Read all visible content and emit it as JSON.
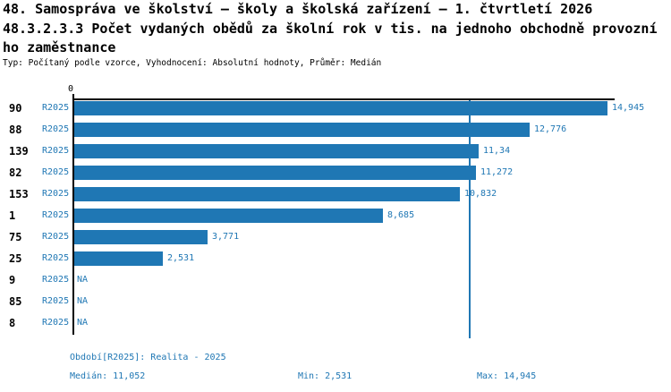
{
  "header": {
    "title_line1": "48. Samospráva ve školství – školy a školská zařízení – 1. čtvrtletí 2026",
    "title_line2": "48.3.2.3.3 Počet vydaných obědů za školní rok v tis. na jednoho obchodně provozní",
    "title_line3": "ho zaměstnance",
    "meta": "Typ: Počítaný podle vzorce, Vyhodnocení: Absolutní hodnoty, Průměr: Medián"
  },
  "chart_data": {
    "type": "bar",
    "orientation": "horizontal",
    "title": "48.3.2.3.3 Počet vydaných obědů za školní rok v tis. na jednoho obchodně provozního zaměstnance",
    "categories": [
      "90",
      "88",
      "139",
      "82",
      "153",
      "1",
      "75",
      "25",
      "9",
      "85",
      "8"
    ],
    "series": [
      {
        "name": "R2025",
        "values": [
          14.945,
          12.776,
          11.34,
          11.272,
          10.832,
          8.685,
          3.771,
          2.531,
          null,
          null,
          null
        ]
      }
    ],
    "value_labels": [
      "14,945",
      "12,776",
      "11,34",
      "11,272",
      "10,832",
      "8,685",
      "3,771",
      "2,531",
      "NA",
      "NA",
      "NA"
    ],
    "na_label": "NA",
    "x_tick_labels": [
      "0"
    ],
    "xlim": [
      0,
      15.1
    ],
    "median": 11.052,
    "min": 2.531,
    "max": 14.945,
    "grid": false,
    "legend": false,
    "bar_color": "#1f77b4",
    "median_line_color": "#2077b4"
  },
  "footer": {
    "period": "Období[R2025]: Realita - 2025",
    "median": "Medián: 11,052",
    "min": "Min: 2,531",
    "max": "Max: 14,945"
  },
  "colors": {
    "accent_blue": "#1f77b4",
    "text_black": "#000000",
    "background": "#ffffff"
  }
}
